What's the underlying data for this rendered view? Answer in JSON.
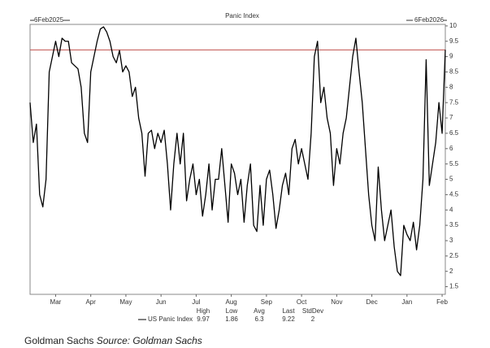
{
  "chart_data": {
    "type": "line",
    "title": "Panic Index",
    "start_label": "6Feb2025",
    "end_label": "6Feb2026",
    "series": [
      {
        "name": "US Panic Index",
        "color": "#000000",
        "values": [
          7.5,
          6.2,
          6.8,
          4.5,
          4.1,
          5.0,
          8.5,
          9.0,
          9.5,
          9.0,
          9.6,
          9.5,
          9.5,
          8.8,
          8.7,
          8.6,
          8.0,
          6.5,
          6.2,
          8.5,
          9.0,
          9.5,
          9.9,
          9.97,
          9.8,
          9.5,
          9.0,
          8.8,
          9.2,
          8.5,
          8.7,
          8.5,
          7.7,
          8.0,
          7.0,
          6.5,
          5.1,
          6.5,
          6.6,
          6.0,
          6.5,
          6.2,
          6.6,
          5.5,
          4.0,
          5.5,
          6.5,
          5.5,
          6.5,
          4.3,
          5.0,
          5.5,
          4.5,
          5.0,
          3.8,
          4.5,
          5.5,
          4.0,
          5.0,
          5.0,
          6.0,
          4.8,
          3.6,
          5.5,
          5.2,
          4.5,
          5.0,
          3.6,
          4.8,
          5.5,
          3.5,
          3.3,
          4.8,
          3.5,
          5.0,
          5.3,
          4.5,
          3.4,
          4.0,
          4.8,
          5.2,
          4.5,
          6.0,
          6.3,
          5.5,
          6.0,
          5.5,
          5.0,
          6.5,
          9.0,
          9.5,
          7.5,
          8.0,
          7.0,
          6.5,
          4.8,
          6.0,
          5.5,
          6.5,
          7.0,
          8.0,
          9.0,
          9.6,
          8.5,
          7.5,
          6.0,
          4.5,
          3.5,
          3.0,
          5.4,
          4.0,
          3.0,
          3.5,
          4.0,
          2.8,
          2.0,
          1.86,
          3.5,
          3.2,
          3.0,
          3.6,
          2.7,
          3.5,
          5.0,
          8.9,
          4.8,
          5.5,
          6.2,
          7.5,
          6.5,
          9.22
        ]
      }
    ],
    "xlim": [
      0,
      130
    ],
    "xticks": [
      {
        "value": 8,
        "label": "Mar"
      },
      {
        "value": 19,
        "label": "Apr"
      },
      {
        "value": 30,
        "label": "May"
      },
      {
        "value": 41,
        "label": "Jun"
      },
      {
        "value": 52,
        "label": "Jul"
      },
      {
        "value": 63,
        "label": "Aug"
      },
      {
        "value": 74,
        "label": "Sep"
      },
      {
        "value": 85,
        "label": "Oct"
      },
      {
        "value": 96,
        "label": "Nov"
      },
      {
        "value": 107,
        "label": "Dec"
      },
      {
        "value": 118,
        "label": "Jan"
      },
      {
        "value": 129,
        "label": "Feb"
      }
    ],
    "ylim": [
      1.25,
      10.05
    ],
    "yticks": [
      1.5,
      2,
      2.5,
      3,
      3.5,
      4,
      4.5,
      5,
      5.5,
      6,
      6.5,
      7,
      7.5,
      8,
      8.5,
      9,
      9.5,
      10
    ],
    "hline": {
      "value": 9.22,
      "color": "#c0504d"
    },
    "stats": {
      "labels": [
        "High",
        "Low",
        "Avg",
        "Last",
        "StdDev"
      ],
      "values": [
        9.97,
        1.86,
        6.3,
        9.22,
        2
      ]
    },
    "source": {
      "text": "Goldman Sachs",
      "italic": "Source: Goldman Sachs"
    }
  }
}
